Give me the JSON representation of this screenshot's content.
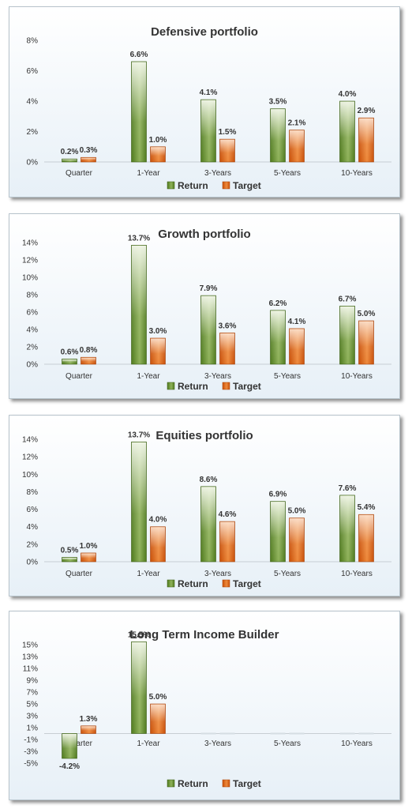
{
  "chart_data": [
    {
      "type": "bar",
      "title": "Defensive portfolio",
      "categories": [
        "Quarter",
        "1-Year",
        "3-Years",
        "5-Years",
        "10-Years"
      ],
      "series": [
        {
          "name": "Return",
          "values": [
            0.2,
            6.6,
            4.1,
            3.5,
            4.0
          ],
          "labels": [
            "0.2%",
            "6.6%",
            "4.1%",
            "3.5%",
            "4.0%"
          ]
        },
        {
          "name": "Target",
          "values": [
            0.3,
            1.0,
            1.5,
            2.1,
            2.9
          ],
          "labels": [
            "0.3%",
            "1.0%",
            "1.5%",
            "2.1%",
            "2.9%"
          ]
        }
      ],
      "ylim": [
        0,
        8
      ],
      "yticks": [
        "0%",
        "2%",
        "4%",
        "6%",
        "8%"
      ],
      "ytick_values": [
        0,
        2,
        4,
        6,
        8
      ],
      "legend": "bottom",
      "grid": false
    },
    {
      "type": "bar",
      "title": "Growth portfolio",
      "categories": [
        "Quarter",
        "1-Year",
        "3-Years",
        "5-Years",
        "10-Years"
      ],
      "series": [
        {
          "name": "Return",
          "values": [
            0.6,
            13.7,
            7.9,
            6.2,
            6.7
          ],
          "labels": [
            "0.6%",
            "13.7%",
            "7.9%",
            "6.2%",
            "6.7%"
          ]
        },
        {
          "name": "Target",
          "values": [
            0.8,
            3.0,
            3.6,
            4.1,
            5.0
          ],
          "labels": [
            "0.8%",
            "3.0%",
            "3.6%",
            "4.1%",
            "5.0%"
          ]
        }
      ],
      "ylim": [
        0,
        14
      ],
      "yticks": [
        "0%",
        "2%",
        "4%",
        "6%",
        "8%",
        "10%",
        "12%",
        "14%"
      ],
      "ytick_values": [
        0,
        2,
        4,
        6,
        8,
        10,
        12,
        14
      ],
      "legend": "bottom",
      "grid": false
    },
    {
      "type": "bar",
      "title": "Equities portfolio",
      "categories": [
        "Quarter",
        "1-Year",
        "3-Years",
        "5-Years",
        "10-Years"
      ],
      "series": [
        {
          "name": "Return",
          "values": [
            0.5,
            13.7,
            8.6,
            6.9,
            7.6
          ],
          "labels": [
            "0.5%",
            "13.7%",
            "8.6%",
            "6.9%",
            "7.6%"
          ]
        },
        {
          "name": "Target",
          "values": [
            1.0,
            4.0,
            4.6,
            5.0,
            5.4
          ],
          "labels": [
            "1.0%",
            "4.0%",
            "4.6%",
            "5.0%",
            "5.4%"
          ]
        }
      ],
      "ylim": [
        0,
        14
      ],
      "yticks": [
        "0%",
        "2%",
        "4%",
        "6%",
        "8%",
        "10%",
        "12%",
        "14%"
      ],
      "ytick_values": [
        0,
        2,
        4,
        6,
        8,
        10,
        12,
        14
      ],
      "legend": "bottom",
      "grid": false
    },
    {
      "type": "bar",
      "title": "Long Term Income Builder",
      "categories": [
        "Quarter",
        "1-Year",
        "3-Years",
        "5-Years",
        "10-Years"
      ],
      "series": [
        {
          "name": "Return",
          "values": [
            -4.2,
            15.5,
            null,
            null,
            null
          ],
          "labels": [
            "-4.2%",
            "15.5%",
            "",
            "",
            ""
          ]
        },
        {
          "name": "Target",
          "values": [
            1.3,
            5.0,
            null,
            null,
            null
          ],
          "labels": [
            "1.3%",
            "5.0%",
            "",
            "",
            ""
          ]
        }
      ],
      "ylim": [
        -5,
        15
      ],
      "yticks": [
        "-5%",
        "-3%",
        "-1%",
        "1%",
        "3%",
        "5%",
        "7%",
        "9%",
        "11%",
        "13%",
        "15%"
      ],
      "ytick_values": [
        -5,
        -3,
        -1,
        1,
        3,
        5,
        7,
        9,
        11,
        13,
        15
      ],
      "legend": "bottom",
      "grid": false
    }
  ],
  "colors": {
    "return_dark": "#4f7a1e",
    "return_light": "#f4f8ec",
    "target_dark": "#c84f08",
    "target_light": "#fde7d6"
  },
  "icons": {
    "return_legend": "green-bar-icon",
    "target_legend": "orange-bar-icon"
  }
}
